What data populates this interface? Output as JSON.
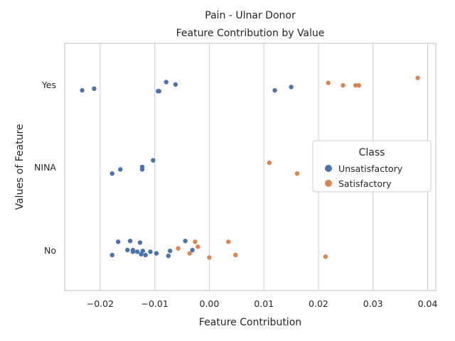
{
  "chart_data": {
    "type": "scatter",
    "title": "Pain - Ulnar Donor",
    "subtitle": "Feature Contribution by Value",
    "xlabel": "Feature Contribution",
    "ylabel": "Values of Feature",
    "xlim": [
      -0.0265,
      0.0415
    ],
    "x_ticks": [
      -0.02,
      -0.01,
      0.0,
      0.01,
      0.02,
      0.03,
      0.04
    ],
    "x_tick_labels": [
      "−0.02",
      "−0.01",
      "0.00",
      "0.01",
      "0.02",
      "0.03",
      "0.04"
    ],
    "categories": [
      "Yes",
      "NINA",
      "No"
    ],
    "grid": "vertical",
    "legend": {
      "title": "Class",
      "placement": "center-right"
    },
    "series": [
      {
        "name": "Unsatisfactory",
        "color": "#4c72b0",
        "points": [
          {
            "x": -0.0233,
            "y": "Yes",
            "jitter": 0.07
          },
          {
            "x": -0.0211,
            "y": "Yes",
            "jitter": 0.05
          },
          {
            "x": -0.0079,
            "y": "Yes",
            "jitter": -0.03
          },
          {
            "x": -0.0062,
            "y": "Yes",
            "jitter": 0.0
          },
          {
            "x": -0.0092,
            "y": "Yes",
            "jitter": 0.08
          },
          {
            "x": -0.0094,
            "y": "Yes",
            "jitter": 0.08
          },
          {
            "x": 0.012,
            "y": "Yes",
            "jitter": 0.07
          },
          {
            "x": 0.015,
            "y": "Yes",
            "jitter": 0.03
          },
          {
            "x": -0.0103,
            "y": "NINA",
            "jitter": -0.08
          },
          {
            "x": -0.0123,
            "y": "NINA",
            "jitter": 0.0
          },
          {
            "x": -0.0123,
            "y": "NINA",
            "jitter": 0.03
          },
          {
            "x": -0.0163,
            "y": "NINA",
            "jitter": 0.03
          },
          {
            "x": -0.0178,
            "y": "NINA",
            "jitter": 0.08
          },
          {
            "x": -0.0167,
            "y": "No",
            "jitter": -0.1
          },
          {
            "x": -0.0145,
            "y": "No",
            "jitter": -0.11
          },
          {
            "x": -0.0127,
            "y": "No",
            "jitter": -0.09
          },
          {
            "x": -0.015,
            "y": "No",
            "jitter": 0.0
          },
          {
            "x": -0.014,
            "y": "No",
            "jitter": 0.0
          },
          {
            "x": -0.014,
            "y": "No",
            "jitter": 0.02
          },
          {
            "x": -0.0132,
            "y": "No",
            "jitter": 0.02
          },
          {
            "x": -0.0122,
            "y": "No",
            "jitter": 0.01
          },
          {
            "x": -0.0125,
            "y": "No",
            "jitter": 0.05
          },
          {
            "x": -0.0117,
            "y": "No",
            "jitter": 0.06
          },
          {
            "x": -0.0108,
            "y": "No",
            "jitter": 0.02
          },
          {
            "x": -0.0097,
            "y": "No",
            "jitter": 0.04
          },
          {
            "x": -0.0072,
            "y": "No",
            "jitter": 0.01
          },
          {
            "x": -0.0075,
            "y": "No",
            "jitter": 0.07
          },
          {
            "x": -0.0044,
            "y": "No",
            "jitter": -0.11
          },
          {
            "x": -0.0031,
            "y": "No",
            "jitter": 0.0
          },
          {
            "x": -0.0178,
            "y": "No",
            "jitter": 0.06
          }
        ]
      },
      {
        "name": "Satisfactory",
        "color": "#dd8452",
        "points": [
          {
            "x": 0.0382,
            "y": "Yes",
            "jitter": -0.08
          },
          {
            "x": 0.0218,
            "y": "Yes",
            "jitter": -0.02
          },
          {
            "x": 0.0245,
            "y": "Yes",
            "jitter": 0.01
          },
          {
            "x": 0.0268,
            "y": "Yes",
            "jitter": 0.01
          },
          {
            "x": 0.0274,
            "y": "Yes",
            "jitter": 0.01
          },
          {
            "x": 0.011,
            "y": "NINA",
            "jitter": -0.05
          },
          {
            "x": 0.0161,
            "y": "NINA",
            "jitter": 0.08
          },
          {
            "x": -0.0026,
            "y": "No",
            "jitter": -0.1
          },
          {
            "x": -0.0021,
            "y": "No",
            "jitter": -0.04
          },
          {
            "x": -0.0057,
            "y": "No",
            "jitter": -0.02
          },
          {
            "x": 0.0035,
            "y": "No",
            "jitter": -0.1
          },
          {
            "x": -0.0036,
            "y": "No",
            "jitter": 0.04
          },
          {
            "x": 0.0048,
            "y": "No",
            "jitter": 0.06
          },
          {
            "x": 0.0,
            "y": "No",
            "jitter": 0.09
          },
          {
            "x": 0.0213,
            "y": "No",
            "jitter": 0.08
          }
        ]
      }
    ]
  }
}
